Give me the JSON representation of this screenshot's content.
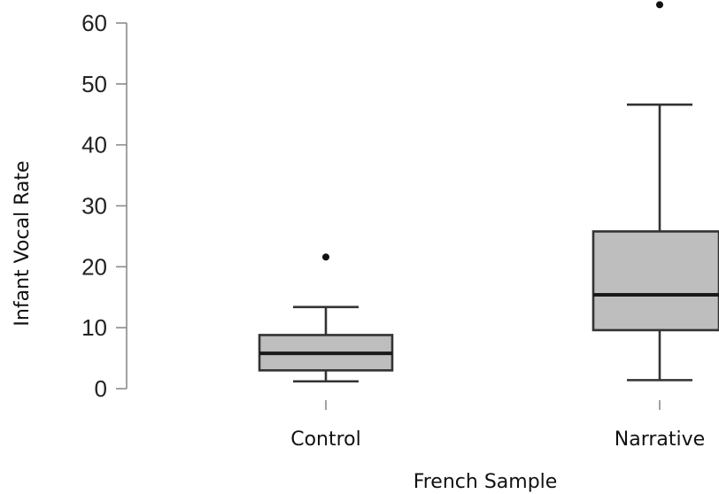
{
  "chart_data": {
    "type": "boxplot",
    "title": "",
    "xlabel": "French Sample",
    "ylabel": "Infant Vocal Rate",
    "ylim": [
      0,
      60
    ],
    "yticks": [
      0,
      10,
      20,
      30,
      40,
      50,
      60
    ],
    "categories": [
      "Control",
      "Narrative"
    ],
    "boxes": [
      {
        "category": "Control",
        "whisker_low": 1.2,
        "q1": 3.0,
        "median": 5.8,
        "q3": 8.8,
        "whisker_high": 13.4,
        "outliers": [
          21.6
        ]
      },
      {
        "category": "Narrative",
        "whisker_low": 1.4,
        "q1": 9.6,
        "median": 15.4,
        "q3": 25.8,
        "whisker_high": 46.6,
        "outliers": [
          63.0
        ]
      }
    ],
    "colors": {
      "box_fill": "#bebebe",
      "box_stroke": "#333333",
      "axis": "#8a8a8a"
    }
  }
}
